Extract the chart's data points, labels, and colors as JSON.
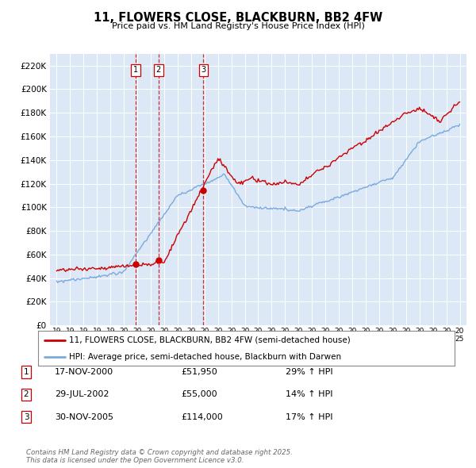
{
  "title_line1": "11, FLOWERS CLOSE, BLACKBURN, BB2 4FW",
  "title_line2": "Price paid vs. HM Land Registry's House Price Index (HPI)",
  "background_color": "#ffffff",
  "plot_bg_color": "#dce8f5",
  "legend1_label": "11, FLOWERS CLOSE, BLACKBURN, BB2 4FW (semi-detached house)",
  "legend2_label": "HPI: Average price, semi-detached house, Blackburn with Darwen",
  "red_color": "#cc0000",
  "blue_color": "#7aaadd",
  "transactions": [
    {
      "date": 2000.88,
      "price": 51950,
      "label": "1"
    },
    {
      "date": 2002.57,
      "price": 55000,
      "label": "2"
    },
    {
      "date": 2005.92,
      "price": 114000,
      "label": "3"
    }
  ],
  "transaction_table": [
    {
      "num": "1",
      "date": "17-NOV-2000",
      "price": "£51,950",
      "change": "29% ↑ HPI"
    },
    {
      "num": "2",
      "date": "29-JUL-2002",
      "price": "£55,000",
      "change": "14% ↑ HPI"
    },
    {
      "num": "3",
      "date": "30-NOV-2005",
      "price": "£114,000",
      "change": "17% ↑ HPI"
    }
  ],
  "footer": "Contains HM Land Registry data © Crown copyright and database right 2025.\nThis data is licensed under the Open Government Licence v3.0.",
  "ylim": [
    0,
    230000
  ],
  "yticks": [
    0,
    20000,
    40000,
    60000,
    80000,
    100000,
    120000,
    140000,
    160000,
    180000,
    200000,
    220000
  ],
  "xlim": [
    1994.5,
    2025.5
  ]
}
